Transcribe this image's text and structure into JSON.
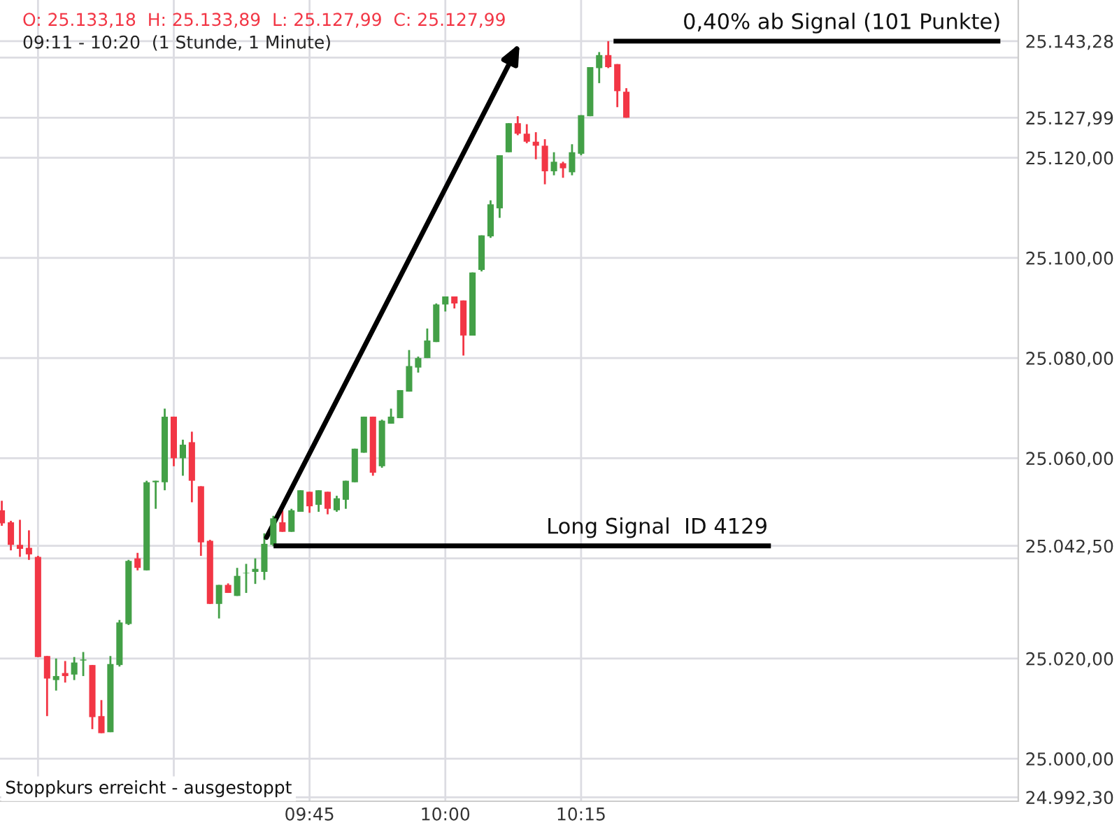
{
  "chart_data": {
    "type": "candlestick",
    "title": "O: 25.133,18  H: 25.133,89  L: 25.127,99  C: 25.127,99",
    "subtitle": "09:11 - 10:20  (1 Stunde, 1 Minute)",
    "series": [
      {
        "x": [
          9.1833,
          9.2,
          9.2167,
          9.2333,
          9.25,
          9.2667,
          9.2833,
          9.3,
          9.3167,
          9.3333,
          9.35,
          9.3667,
          9.3833,
          9.4,
          9.4167,
          9.4333,
          9.45,
          9.4667,
          9.4833,
          9.5,
          9.5167,
          9.5333,
          9.55,
          9.5667,
          9.5833,
          9.6,
          9.6167,
          9.6333,
          9.65,
          9.6667,
          9.6833,
          9.7,
          9.7167,
          9.7333,
          9.75,
          9.7667,
          9.7833,
          9.8,
          9.8167,
          9.8333,
          9.85,
          9.8667,
          9.8833,
          9.9,
          9.9167,
          9.9333,
          9.95,
          9.9667,
          9.9833,
          10.0,
          10.0167,
          10.0333,
          10.05,
          10.0667,
          10.0833,
          10.1,
          10.1167,
          10.1333,
          10.15,
          10.1667,
          10.1833,
          10.2,
          10.2167,
          10.2333,
          10.25,
          10.2667,
          10.2833,
          10.3,
          10.3167,
          10.3333
        ],
        "ohlc": [
          [
            25049.6,
            25051.5,
            25046.5,
            25047.0
          ],
          [
            25047.2,
            25047.5,
            25041.6,
            25042.7
          ],
          [
            25042.7,
            25047.7,
            25040.3,
            25041.9
          ],
          [
            25042.1,
            25045.6,
            25039.7,
            25040.8
          ],
          [
            25040.3,
            25040.5,
            25020.3,
            25020.3
          ],
          [
            25020.5,
            25020.5,
            25008.5,
            25016.0
          ],
          [
            25015.7,
            25020.0,
            25013.6,
            25016.5
          ],
          [
            25017.1,
            25019.5,
            25015.2,
            25016.5
          ],
          [
            25016.8,
            25020.3,
            25015.7,
            25019.2
          ],
          [
            25019.6,
            25021.3,
            25016.5,
            25019.8
          ],
          [
            25018.7,
            25018.7,
            25005.9,
            25008.3
          ],
          [
            25008.5,
            25011.7,
            25005.1,
            25005.1
          ],
          [
            25005.3,
            25020.5,
            25005.3,
            25018.9
          ],
          [
            25018.7,
            25027.7,
            25018.4,
            25027.2
          ],
          [
            25026.9,
            25039.7,
            25026.7,
            25039.5
          ],
          [
            25040.0,
            25041.1,
            25037.6,
            25038.1
          ],
          [
            25037.6,
            25055.5,
            25037.6,
            25055.2
          ],
          [
            25055.2,
            25055.5,
            25049.9,
            25055.5
          ],
          [
            25055.2,
            25069.9,
            25053.6,
            25068.3
          ],
          [
            25068.3,
            25068.3,
            25058.4,
            25060.0
          ],
          [
            25060.0,
            25063.7,
            25056.5,
            25062.7
          ],
          [
            25063.2,
            25065.3,
            25051.2,
            25055.5
          ],
          [
            25054.4,
            25054.4,
            25040.5,
            25043.2
          ],
          [
            25043.5,
            25043.7,
            25030.9,
            25030.9
          ],
          [
            25030.9,
            25034.7,
            25028.0,
            25034.7
          ],
          [
            25034.7,
            25035.0,
            25033.1,
            25033.1
          ],
          [
            25032.5,
            25038.1,
            25032.5,
            25036.5
          ],
          [
            25037.0,
            25038.9,
            25033.1,
            25037.1
          ],
          [
            25037.3,
            25040.0,
            25034.9,
            25037.9
          ],
          [
            25037.3,
            25045.0,
            25035.7,
            25042.9
          ],
          [
            25042.7,
            25048.5,
            25042.4,
            25048.0
          ],
          [
            25047.2,
            25049.6,
            25045.3,
            25045.3
          ],
          [
            25045.3,
            25049.9,
            25045.3,
            25049.6
          ],
          [
            25049.3,
            25053.6,
            25049.3,
            25053.6
          ],
          [
            25053.3,
            25053.3,
            25049.1,
            25050.4
          ],
          [
            25050.7,
            25053.6,
            25049.3,
            25053.6
          ],
          [
            25053.3,
            25053.3,
            25048.8,
            25049.9
          ],
          [
            25049.6,
            25052.5,
            25049.3,
            25052.0
          ],
          [
            25051.7,
            25055.5,
            25049.9,
            25055.5
          ],
          [
            25055.2,
            25061.9,
            25055.2,
            25061.9
          ],
          [
            25061.1,
            25068.3,
            25061.1,
            25068.3
          ],
          [
            25068.3,
            25068.3,
            25056.5,
            25057.1
          ],
          [
            25058.4,
            25067.7,
            25058.1,
            25067.5
          ],
          [
            25066.9,
            25069.9,
            25066.9,
            25068.3
          ],
          [
            25068.0,
            25073.6,
            25068.0,
            25073.6
          ],
          [
            25073.3,
            25081.6,
            25073.3,
            25078.4
          ],
          [
            25078.1,
            25080.3,
            25077.1,
            25080.0
          ],
          [
            25080.0,
            25085.9,
            25080.0,
            25083.5
          ],
          [
            25083.2,
            25090.9,
            25083.2,
            25090.7
          ],
          [
            25090.7,
            25092.3,
            25089.3,
            25092.3
          ],
          [
            25092.3,
            25092.3,
            25089.9,
            25090.9
          ],
          [
            25091.5,
            25091.5,
            25080.5,
            25084.5
          ],
          [
            25084.5,
            25097.1,
            25084.5,
            25097.1
          ],
          [
            25097.6,
            25104.5,
            25097.3,
            25104.5
          ],
          [
            25104.3,
            25111.5,
            25104.0,
            25110.7
          ],
          [
            25109.9,
            25120.5,
            25108.0,
            25120.5
          ],
          [
            25121.1,
            25126.9,
            25121.1,
            25126.9
          ],
          [
            25126.9,
            25128.3,
            25124.5,
            25124.8
          ],
          [
            25124.8,
            25126.7,
            25122.9,
            25123.2
          ],
          [
            25123.2,
            25125.1,
            25119.7,
            25122.4
          ],
          [
            25122.4,
            25123.7,
            25114.7,
            25117.3
          ],
          [
            25117.3,
            25121.1,
            25116.5,
            25119.2
          ],
          [
            25118.9,
            25119.2,
            25116.0,
            25117.9
          ],
          [
            25117.1,
            25122.7,
            25116.5,
            25121.1
          ],
          [
            25120.8,
            25128.5,
            25120.5,
            25128.5
          ],
          [
            25128.3,
            25138.1,
            25128.3,
            25138.1
          ],
          [
            25137.9,
            25141.1,
            25134.9,
            25140.5
          ],
          [
            25140.5,
            25143.28,
            25137.9,
            25138.1
          ],
          [
            25138.7,
            25138.7,
            25130.1,
            25133.3
          ],
          [
            25133.18,
            25133.89,
            25127.99,
            25127.99
          ]
        ],
        "colors": [
          "#f23645",
          "#f23645",
          "#f23645",
          "#f23645",
          "#f23645",
          "#f23645",
          "#43a047",
          "#f23645",
          "#43a047",
          "#43a047",
          "#f23645",
          "#f23645",
          "#43a047",
          "#43a047",
          "#43a047",
          "#f23645",
          "#43a047",
          "#43a047",
          "#43a047",
          "#f23645",
          "#43a047",
          "#f23645",
          "#f23645",
          "#f23645",
          "#43a047",
          "#f23645",
          "#43a047",
          "#43a047",
          "#43a047",
          "#43a047",
          "#43a047",
          "#f23645",
          "#43a047",
          "#43a047",
          "#f23645",
          "#43a047",
          "#f23645",
          "#43a047",
          "#43a047",
          "#43a047",
          "#43a047",
          "#f23645",
          "#43a047",
          "#43a047",
          "#43a047",
          "#43a047",
          "#43a047",
          "#43a047",
          "#43a047",
          "#43a047",
          "#f23645",
          "#f23645",
          "#43a047",
          "#43a047",
          "#43a047",
          "#43a047",
          "#43a047",
          "#f23645",
          "#f23645",
          "#f23645",
          "#f23645",
          "#43a047",
          "#f23645",
          "#43a047",
          "#43a047",
          "#43a047",
          "#43a047",
          "#f23645",
          "#f23645",
          "#f23645"
        ]
      },
      {
        "type": "line",
        "color": "#000000",
        "x": [
          9.6882,
          10.595
        ],
        "values": [
          25042.5,
          25042.5
        ]
      },
      {
        "type": "line",
        "color": "#000000",
        "x": [
          10.3142,
          11.0175
        ],
        "values": [
          25143.28,
          25143.28
        ]
      }
    ],
    "annotations": [
      {
        "text": "Long Signal  ID 4129",
        "x": 10.39,
        "y": 25042.5
      },
      {
        "text": "0,40% ab Signal (101 Punkte)",
        "x": 10.73,
        "y": 25143.28
      },
      "Stoppkurs erreicht - ausgestoppt"
    ],
    "xlim": [
      9.18,
      11.055
    ],
    "xticks": [
      {
        "value": 9.25,
        "label": null
      },
      {
        "value": 9.5,
        "label": null
      },
      {
        "value": 9.75,
        "label": "09:45"
      },
      {
        "value": 10.0,
        "label": "10:00"
      },
      {
        "value": 10.25,
        "label": "10:15"
      }
    ],
    "ylim": [
      24991.5,
      25151.5
    ],
    "yticks": [
      {
        "value": 24992.3,
        "label": "24.992,30"
      },
      {
        "value": 25000,
        "label": "25.000,00"
      },
      {
        "value": 25020,
        "label": "25.020,00"
      },
      {
        "value": 25040,
        "label": null
      },
      {
        "value": 25042.5,
        "label": "25.042,50"
      },
      {
        "value": 25060,
        "label": "25.060,00"
      },
      {
        "value": 25080,
        "label": "25.080,00"
      },
      {
        "value": 25100,
        "label": "25.100,00"
      },
      {
        "value": 25120,
        "label": "25.120,00"
      },
      {
        "value": 25127.99,
        "label": "25.127,99"
      },
      {
        "value": 25140,
        "label": null
      },
      {
        "value": 25143.28,
        "label": "25.143,28"
      }
    ],
    "grid": true,
    "legend": false,
    "marker": "none",
    "line_style": "solid"
  }
}
